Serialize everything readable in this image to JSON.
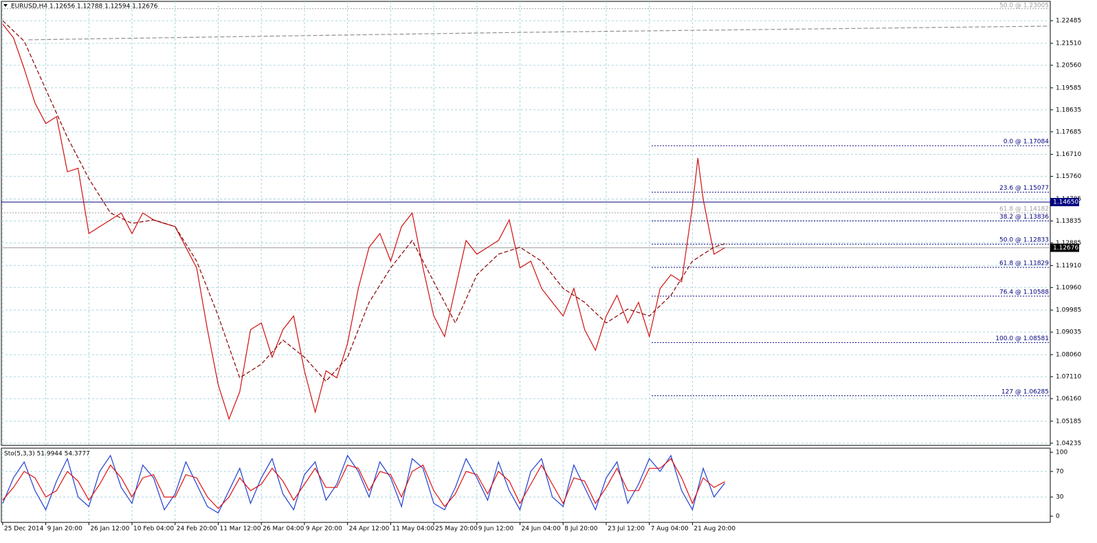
{
  "chart_data": [
    {
      "type": "line",
      "title": "EURUSD,H4  1.12656 1.12788 1.12594 1.12676",
      "xlim": [
        -0.03,
        24.3
      ],
      "xticks": [
        {
          "value": 0,
          "label": "25 Dec 2014"
        },
        {
          "value": 1,
          "label": "9 Jan 20:00"
        },
        {
          "value": 2,
          "label": "26 Jan 12:00"
        },
        {
          "value": 3,
          "label": "10 Feb 04:00"
        },
        {
          "value": 4,
          "label": "24 Feb 20:00"
        },
        {
          "value": 5,
          "label": "11 Mar 12:00"
        },
        {
          "value": 6,
          "label": "26 Mar 04:00"
        },
        {
          "value": 7,
          "label": "9 Apr 20:00"
        },
        {
          "value": 8,
          "label": "24 Apr 12:00"
        },
        {
          "value": 9,
          "label": "11 May 04:00"
        },
        {
          "value": 10,
          "label": "25 May 20:00"
        },
        {
          "value": 11,
          "label": "9 Jun 12:00"
        },
        {
          "value": 12,
          "label": "24 Jun 04:00"
        },
        {
          "value": 13,
          "label": "8 Jul 20:00"
        },
        {
          "value": 14,
          "label": "23 Jul 12:00"
        },
        {
          "value": 15,
          "label": "7 Aug 04:00"
        },
        {
          "value": 16,
          "label": "21 Aug 20:00"
        }
      ],
      "ylim": [
        1.0414,
        1.2332
      ],
      "yticks": [
        1.22485,
        {
          "value": 1.2151,
          "label": "1.21510"
        },
        {
          "value": 1.2056,
          "label": "1.20560"
        },
        1.19585,
        1.18635,
        1.17685,
        {
          "value": 1.1671,
          "label": "1.16710"
        },
        {
          "value": 1.1576,
          "label": "1.15760"
        },
        1.14785,
        1.13835,
        1.12885,
        {
          "value": 1.1191,
          "label": "1.11910"
        },
        {
          "value": 1.1096,
          "label": "1.10960"
        },
        1.09985,
        1.09035,
        {
          "value": 1.0806,
          "label": "1.08060"
        },
        {
          "value": 1.0711,
          "label": "1.07110"
        },
        {
          "value": 1.0616,
          "label": "1.06160"
        },
        1.05185,
        1.04235
      ],
      "grid": true,
      "series": [
        {
          "color": "#d01010",
          "dash": false,
          "x": [
            0,
            0.25,
            0.5,
            0.75,
            1,
            1.25,
            1.5,
            1.75,
            2,
            2.25,
            2.5,
            2.75,
            3,
            3.25,
            3.5,
            3.75,
            4,
            4.25,
            4.5,
            4.75,
            5,
            5.25,
            5.5,
            5.75,
            6,
            6.25,
            6.5,
            6.75,
            7,
            7.25,
            7.5,
            7.75,
            8,
            8.25,
            8.5,
            8.75,
            9,
            9.25,
            9.5,
            9.75,
            10,
            10.25,
            10.5,
            10.75,
            11,
            11.25,
            11.5,
            11.75,
            12,
            12.25,
            12.5,
            12.75,
            13,
            13.25,
            13.5,
            13.75,
            14,
            14.25,
            14.5,
            14.75,
            15,
            15.25,
            15.5,
            15.75,
            16,
            16.125,
            16.25,
            16.5,
            16.75
          ],
          "values": [
            1.2234,
            1.2175,
            1.2041,
            1.1893,
            1.1804,
            1.1834,
            1.1596,
            1.1611,
            1.1329,
            1.1359,
            1.1388,
            1.1418,
            1.1329,
            1.1418,
            1.1388,
            1.1373,
            1.1359,
            1.127,
            1.1181,
            1.0914,
            1.0676,
            1.0528,
            1.0646,
            1.0914,
            1.0943,
            1.0795,
            1.0914,
            1.0973,
            1.0736,
            1.0558,
            1.0736,
            1.0706,
            1.0854,
            1.1092,
            1.127,
            1.1329,
            1.121,
            1.1359,
            1.1418,
            1.1181,
            1.0973,
            1.0884,
            1.1092,
            1.1299,
            1.124,
            1.127,
            1.1299,
            1.1388,
            1.1181,
            1.121,
            1.1092,
            1.1032,
            1.0973,
            1.1092,
            1.0914,
            1.0825,
            1.0973,
            1.1062,
            1.0943,
            1.1032,
            1.0884,
            1.1092,
            1.1151,
            1.1121,
            1.1448,
            1.1655,
            1.1477,
            1.124,
            1.1268
          ]
        },
        {
          "color": "#8b0000",
          "dash": true,
          "x": [
            0,
            0.5,
            1,
            1.5,
            2,
            2.5,
            3,
            3.5,
            4,
            4.5,
            5,
            5.5,
            6,
            6.5,
            7,
            7.5,
            8,
            8.5,
            9,
            9.5,
            10,
            10.5,
            11,
            11.5,
            12,
            12.5,
            13,
            13.5,
            14,
            14.5,
            15,
            15.5,
            16,
            16.5,
            16.75
          ],
          "values": [
            1.2249,
            1.216,
            1.1952,
            1.1745,
            1.1566,
            1.1418,
            1.1373,
            1.1388,
            1.1359,
            1.121,
            1.0973,
            1.0706,
            1.0765,
            1.0869,
            1.0795,
            1.0691,
            1.0795,
            1.1032,
            1.1181,
            1.1299,
            1.1121,
            1.0943,
            1.1151,
            1.124,
            1.127,
            1.121,
            1.1092,
            1.1032,
            1.0943,
            1.1003,
            1.0973,
            1.1062,
            1.121,
            1.127,
            1.1285
          ]
        },
        {
          "color": "#909090",
          "dash": true,
          "x": [
            0.6,
            12,
            24.3
          ],
          "values": [
            1.2166,
            1.2198,
            1.2225
          ]
        }
      ],
      "price_lines": [
        {
          "value": 1.1465,
          "label": "1.14650",
          "color": "#000080"
        },
        {
          "value": 1.12676,
          "color": "#000000"
        }
      ],
      "fib_levels": {
        "color": "#000080",
        "values": [
          1.17084,
          1.15077,
          1.13836,
          1.12833,
          1.11829,
          1.10588,
          1.08581,
          1.06285
        ],
        "value_labels": [
          "0.0 @ 1.17084",
          "23.6 @ 1.15077",
          "38.2 @ 1.13836",
          "50.0 @ 1.12833",
          "61.8 @ 1.11829",
          "76.4 @ 1.10588",
          "100.0 @ 1.08581",
          "127 @ 1.06285"
        ]
      },
      "fib_levels_old": {
        "color": "#a0a0a0",
        "values": [
          1.23005,
          1.14182
        ],
        "value_labels": [
          "50.0 @ 1.23005",
          "61.8 @ 1.14182"
        ]
      }
    },
    {
      "type": "line",
      "title": "Sto(5,3,3) 51.9944 54.3777",
      "xlim": [
        -0.03,
        24.3
      ],
      "ylim": [
        -9.7,
        106.5
      ],
      "yticks": [
        100,
        70,
        30,
        0
      ],
      "series": [
        {
          "color": "#1f3fd0",
          "dash": false,
          "x": [
            0,
            0.25,
            0.5,
            0.75,
            1,
            1.25,
            1.5,
            1.75,
            2,
            2.25,
            2.5,
            2.75,
            3,
            3.25,
            3.5,
            3.75,
            4,
            4.25,
            4.5,
            4.75,
            5,
            5.25,
            5.5,
            5.75,
            6,
            6.25,
            6.5,
            6.75,
            7,
            7.25,
            7.5,
            7.75,
            8,
            8.25,
            8.5,
            8.75,
            9,
            9.25,
            9.5,
            9.75,
            10,
            10.25,
            10.5,
            10.75,
            11,
            11.25,
            11.5,
            11.75,
            12,
            12.25,
            12.5,
            12.75,
            13,
            13.25,
            13.5,
            13.75,
            14,
            14.25,
            14.5,
            14.75,
            15,
            15.25,
            15.5,
            15.75,
            16,
            16.25,
            16.5,
            16.75
          ],
          "values": [
            20,
            60,
            85,
            40,
            10,
            55,
            90,
            30,
            15,
            70,
            95,
            45,
            20,
            80,
            60,
            10,
            35,
            85,
            50,
            15,
            5,
            40,
            75,
            20,
            60,
            90,
            35,
            10,
            65,
            85,
            25,
            50,
            95,
            70,
            30,
            85,
            60,
            15,
            90,
            75,
            20,
            10,
            45,
            90,
            60,
            25,
            85,
            40,
            10,
            70,
            90,
            30,
            15,
            80,
            45,
            10,
            60,
            85,
            20,
            50,
            90,
            70,
            95,
            40,
            10,
            75,
            30,
            52
          ]
        },
        {
          "color": "#e01010",
          "dash": false,
          "x": [
            0,
            0.25,
            0.5,
            0.75,
            1,
            1.25,
            1.5,
            1.75,
            2,
            2.25,
            2.5,
            2.75,
            3,
            3.25,
            3.5,
            3.75,
            4,
            4.25,
            4.5,
            4.75,
            5,
            5.25,
            5.5,
            5.75,
            6,
            6.25,
            6.5,
            6.75,
            7,
            7.25,
            7.5,
            7.75,
            8,
            8.25,
            8.5,
            8.75,
            9,
            9.25,
            9.5,
            9.75,
            10,
            10.25,
            10.5,
            10.75,
            11,
            11.25,
            11.5,
            11.75,
            12,
            12.25,
            12.5,
            12.75,
            13,
            13.25,
            13.5,
            13.75,
            14,
            14.25,
            14.5,
            14.75,
            15,
            15.25,
            15.5,
            15.75,
            16,
            16.25,
            16.5,
            16.75
          ],
          "values": [
            25,
            45,
            70,
            60,
            30,
            40,
            70,
            55,
            25,
            50,
            80,
            60,
            30,
            60,
            65,
            30,
            30,
            65,
            60,
            30,
            12,
            30,
            60,
            40,
            50,
            75,
            55,
            25,
            50,
            75,
            45,
            45,
            80,
            75,
            40,
            70,
            65,
            30,
            70,
            80,
            40,
            15,
            35,
            70,
            65,
            35,
            70,
            55,
            20,
            50,
            80,
            50,
            20,
            60,
            55,
            20,
            45,
            75,
            40,
            40,
            75,
            75,
            90,
            60,
            20,
            60,
            45,
            54
          ]
        }
      ]
    }
  ]
}
